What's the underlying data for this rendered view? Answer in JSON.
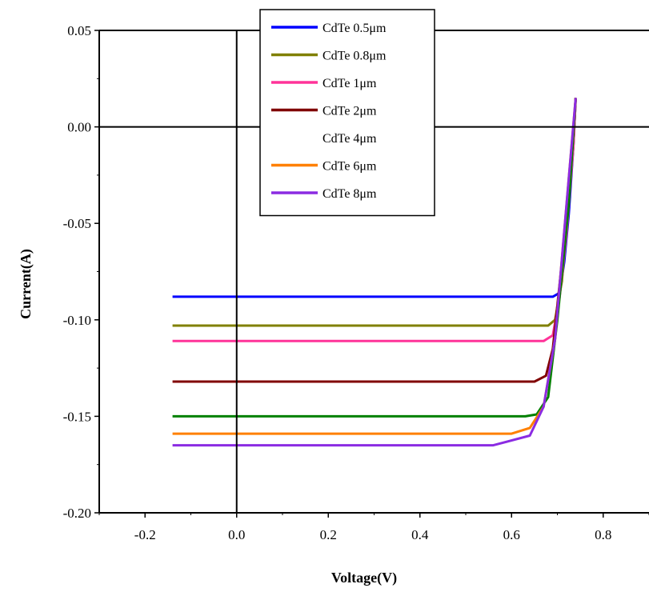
{
  "chart_data": {
    "type": "line",
    "title": "",
    "xlabel": "Voltage(V)",
    "ylabel": "Current(A)",
    "xlim": [
      -0.3,
      0.9
    ],
    "ylim": [
      -0.2,
      0.05
    ],
    "xticks": [
      -0.2,
      0.0,
      0.2,
      0.4,
      0.6,
      0.8
    ],
    "xtick_labels": [
      "-0.2",
      "0.0",
      "0.2",
      "0.4",
      "0.6",
      "0.8"
    ],
    "yticks": [
      0.05,
      0.0,
      -0.05,
      -0.1,
      -0.15,
      -0.2
    ],
    "ytick_labels": [
      "0.05",
      "0.00",
      "-0.05",
      "-0.10",
      "-0.15",
      "-0.20"
    ],
    "grid": false,
    "zero_lines": true,
    "legend_position": "top-center",
    "series": [
      {
        "name": "CdTe 0.5μm",
        "color": "#0000ff",
        "x": [
          -0.14,
          0.69,
          0.705,
          0.715,
          0.725,
          0.735,
          0.74
        ],
        "y": [
          -0.088,
          -0.088,
          -0.086,
          -0.07,
          -0.045,
          -0.01,
          0.015
        ]
      },
      {
        "name": "CdTe 0.8μm",
        "color": "#808000",
        "x": [
          -0.14,
          0.68,
          0.695,
          0.71,
          0.72,
          0.735,
          0.74
        ],
        "y": [
          -0.103,
          -0.103,
          -0.1,
          -0.08,
          -0.05,
          -0.01,
          0.015
        ]
      },
      {
        "name": "CdTe 1μm",
        "color": "#ff3399",
        "x": [
          -0.14,
          0.67,
          0.69,
          0.705,
          0.72,
          0.735,
          0.74
        ],
        "y": [
          -0.111,
          -0.111,
          -0.108,
          -0.088,
          -0.055,
          -0.01,
          0.015
        ]
      },
      {
        "name": "CdTe 2μm",
        "color": "#800000",
        "x": [
          -0.14,
          0.65,
          0.675,
          0.69,
          0.71,
          0.73,
          0.74
        ],
        "y": [
          -0.132,
          -0.132,
          -0.129,
          -0.115,
          -0.07,
          -0.02,
          0.015
        ]
      },
      {
        "name": "CdTe 4μm",
        "color": "#008000",
        "x": [
          -0.14,
          0.63,
          0.655,
          0.68,
          0.7,
          0.725,
          0.74
        ],
        "y": [
          -0.15,
          -0.15,
          -0.149,
          -0.14,
          -0.1,
          -0.04,
          0.015
        ]
      },
      {
        "name": "CdTe 6μm",
        "color": "#ff8000",
        "x": [
          -0.14,
          0.6,
          0.64,
          0.67,
          0.695,
          0.72,
          0.74
        ],
        "y": [
          -0.159,
          -0.159,
          -0.156,
          -0.145,
          -0.11,
          -0.04,
          0.015
        ]
      },
      {
        "name": "CdTe 8μm",
        "color": "#8b2be2",
        "x": [
          -0.14,
          0.56,
          0.64,
          0.67,
          0.695,
          0.72,
          0.74
        ],
        "y": [
          -0.165,
          -0.165,
          -0.16,
          -0.145,
          -0.11,
          -0.04,
          0.015
        ]
      }
    ]
  }
}
